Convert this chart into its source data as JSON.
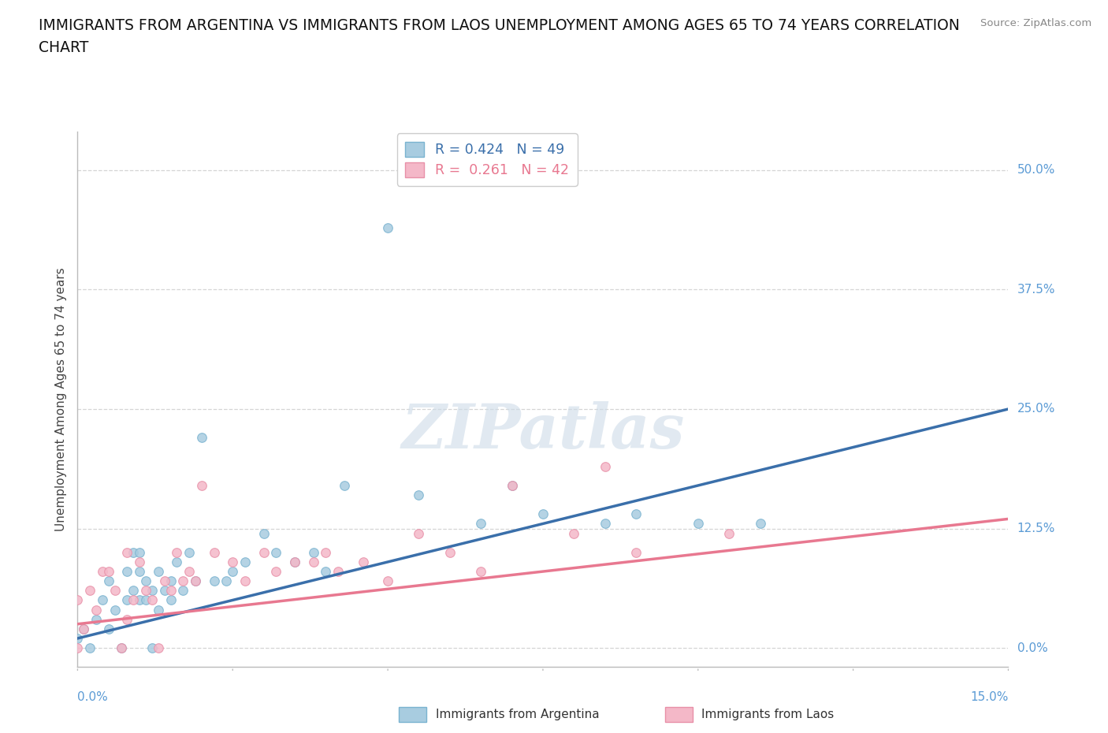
{
  "title": "IMMIGRANTS FROM ARGENTINA VS IMMIGRANTS FROM LAOS UNEMPLOYMENT AMONG AGES 65 TO 74 YEARS CORRELATION\nCHART",
  "source_text": "Source: ZipAtlas.com",
  "ylabel": "Unemployment Among Ages 65 to 74 years",
  "xlim": [
    0.0,
    0.15
  ],
  "ylim": [
    -0.02,
    0.54
  ],
  "ytick_labels": [
    "0.0%",
    "12.5%",
    "25.0%",
    "37.5%",
    "50.0%"
  ],
  "ytick_values": [
    0.0,
    0.125,
    0.25,
    0.375,
    0.5
  ],
  "argentina_color": "#a8cce0",
  "argentina_edge": "#7ab3d0",
  "laos_color": "#f4b8c8",
  "laos_edge": "#e890a8",
  "argentina_line_color": "#3a6faa",
  "laos_line_color": "#e87890",
  "R_argentina": 0.424,
  "N_argentina": 49,
  "R_laos": 0.261,
  "N_laos": 42,
  "argentina_scatter_x": [
    0.0,
    0.001,
    0.002,
    0.003,
    0.004,
    0.005,
    0.005,
    0.006,
    0.007,
    0.008,
    0.008,
    0.009,
    0.009,
    0.01,
    0.01,
    0.01,
    0.011,
    0.011,
    0.012,
    0.012,
    0.013,
    0.013,
    0.014,
    0.015,
    0.015,
    0.016,
    0.017,
    0.018,
    0.019,
    0.02,
    0.022,
    0.024,
    0.025,
    0.027,
    0.03,
    0.032,
    0.035,
    0.038,
    0.04,
    0.043,
    0.05,
    0.055,
    0.065,
    0.07,
    0.075,
    0.085,
    0.09,
    0.1,
    0.11
  ],
  "argentina_scatter_y": [
    0.01,
    0.02,
    0.0,
    0.03,
    0.05,
    0.02,
    0.07,
    0.04,
    0.0,
    0.05,
    0.08,
    0.06,
    0.1,
    0.05,
    0.08,
    0.1,
    0.05,
    0.07,
    0.0,
    0.06,
    0.04,
    0.08,
    0.06,
    0.05,
    0.07,
    0.09,
    0.06,
    0.1,
    0.07,
    0.22,
    0.07,
    0.07,
    0.08,
    0.09,
    0.12,
    0.1,
    0.09,
    0.1,
    0.08,
    0.17,
    0.44,
    0.16,
    0.13,
    0.17,
    0.14,
    0.13,
    0.14,
    0.13,
    0.13
  ],
  "laos_scatter_x": [
    0.0,
    0.0,
    0.001,
    0.002,
    0.003,
    0.004,
    0.005,
    0.006,
    0.007,
    0.008,
    0.008,
    0.009,
    0.01,
    0.011,
    0.012,
    0.013,
    0.014,
    0.015,
    0.016,
    0.017,
    0.018,
    0.019,
    0.02,
    0.022,
    0.025,
    0.027,
    0.03,
    0.032,
    0.035,
    0.038,
    0.04,
    0.042,
    0.046,
    0.05,
    0.055,
    0.06,
    0.065,
    0.07,
    0.08,
    0.085,
    0.09,
    0.105
  ],
  "laos_scatter_y": [
    0.0,
    0.05,
    0.02,
    0.06,
    0.04,
    0.08,
    0.08,
    0.06,
    0.0,
    0.03,
    0.1,
    0.05,
    0.09,
    0.06,
    0.05,
    0.0,
    0.07,
    0.06,
    0.1,
    0.07,
    0.08,
    0.07,
    0.17,
    0.1,
    0.09,
    0.07,
    0.1,
    0.08,
    0.09,
    0.09,
    0.1,
    0.08,
    0.09,
    0.07,
    0.12,
    0.1,
    0.08,
    0.17,
    0.12,
    0.19,
    0.1,
    0.12
  ],
  "argentina_trend_x": [
    0.0,
    0.15
  ],
  "argentina_trend_y": [
    0.01,
    0.25
  ],
  "laos_trend_x": [
    0.0,
    0.15
  ],
  "laos_trend_y": [
    0.025,
    0.135
  ],
  "watermark_text": "ZIPatlas",
  "background_color": "#ffffff",
  "grid_color": "#d5d5d5",
  "title_fontsize": 13.5,
  "label_fontsize": 11,
  "tick_fontsize": 11,
  "source_fontsize": 9.5
}
